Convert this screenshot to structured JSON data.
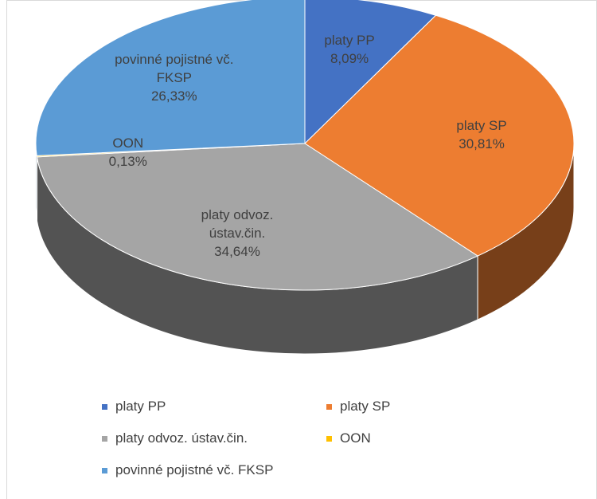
{
  "chart_data": {
    "type": "pie",
    "categories": [
      "platy PP",
      "platy SP",
      "platy odvoz. ústav.čin.",
      "OON",
      "povinné pojistné vč. FKSP"
    ],
    "values": [
      8.09,
      30.81,
      34.64,
      0.13,
      26.33
    ],
    "value_labels": [
      "8,09%",
      "30,81%",
      "34,64%",
      "0,13%",
      "26,33%"
    ],
    "colors": [
      "#4472c4",
      "#ed7d31",
      "#a5a5a5",
      "#ffc000",
      "#5b9bd5"
    ],
    "legend": "bottom"
  }
}
